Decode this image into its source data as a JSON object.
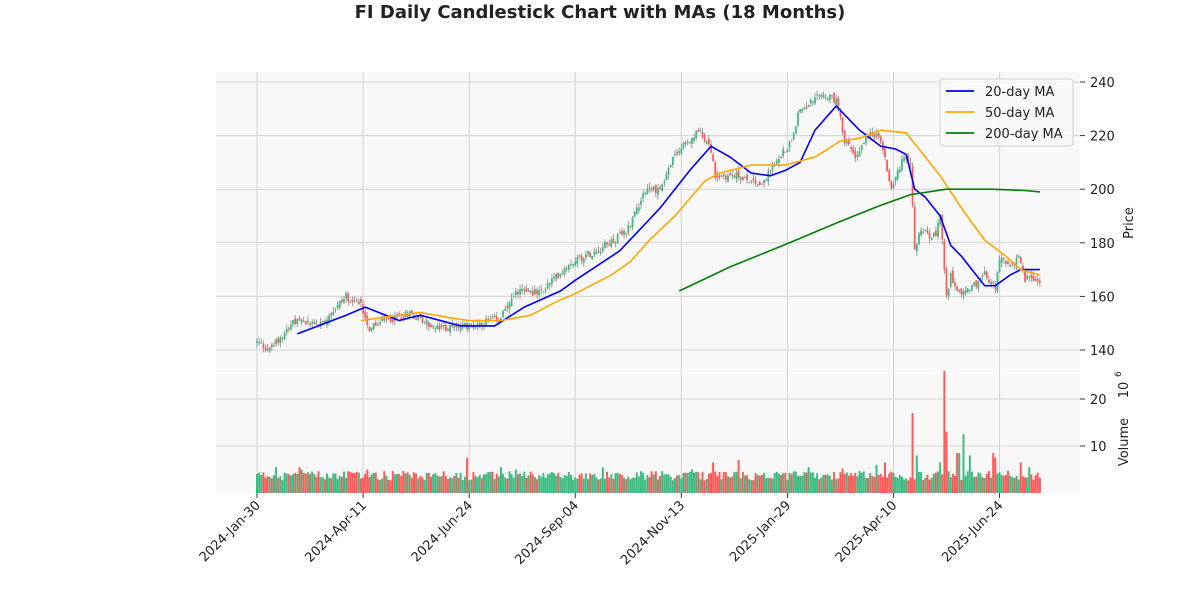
{
  "chart_data": {
    "type": "candlestick",
    "title": "FI Daily Candlestick Chart with MAs (18 Months)",
    "ylabel_price": "Price",
    "ylabel_volume": "Volume",
    "volume_exponent": "10",
    "volume_exponent_power": "6",
    "price_ylim": [
      136,
      244
    ],
    "price_ticks": [
      140,
      160,
      180,
      200,
      220,
      240
    ],
    "volume_ticks": [
      10,
      20
    ],
    "volume_unit": "millions",
    "trading_days": 370,
    "x_ticks": [
      {
        "day": 0,
        "label": "2024-Jan-30"
      },
      {
        "day": 50,
        "label": "2024-Apr-11"
      },
      {
        "day": 100,
        "label": "2024-Jun-24"
      },
      {
        "day": 150,
        "label": "2024-Sep-04"
      },
      {
        "day": 200,
        "label": "2024-Nov-13"
      },
      {
        "day": 250,
        "label": "2025-Jan-29"
      },
      {
        "day": 300,
        "label": "2025-Apr-10"
      },
      {
        "day": 350,
        "label": "2025-Jun-24"
      }
    ],
    "close_anchors": [
      [
        0,
        143
      ],
      [
        4,
        141
      ],
      [
        6,
        140
      ],
      [
        16,
        150
      ],
      [
        30,
        150
      ],
      [
        42,
        160
      ],
      [
        49,
        157
      ],
      [
        53,
        148
      ],
      [
        58,
        150
      ],
      [
        72,
        154
      ],
      [
        84,
        148
      ],
      [
        100,
        149
      ],
      [
        115,
        152
      ],
      [
        124,
        163
      ],
      [
        133,
        161
      ],
      [
        148,
        173
      ],
      [
        162,
        178
      ],
      [
        174,
        184
      ],
      [
        183,
        200
      ],
      [
        190,
        200
      ],
      [
        197,
        213
      ],
      [
        209,
        222
      ],
      [
        214,
        215
      ],
      [
        216,
        205
      ],
      [
        228,
        205
      ],
      [
        238,
        202
      ],
      [
        242,
        207
      ],
      [
        251,
        217
      ],
      [
        256,
        230
      ],
      [
        266,
        235
      ],
      [
        273,
        233
      ],
      [
        277,
        218
      ],
      [
        282,
        212
      ],
      [
        289,
        222
      ],
      [
        294,
        218
      ],
      [
        299,
        200
      ],
      [
        301,
        205
      ],
      [
        306,
        213
      ],
      [
        308,
        208
      ],
      [
        310,
        178
      ],
      [
        313,
        185
      ],
      [
        320,
        182
      ],
      [
        322,
        190
      ],
      [
        325,
        160
      ],
      [
        327,
        168
      ],
      [
        332,
        160
      ],
      [
        339,
        165
      ],
      [
        343,
        168
      ],
      [
        348,
        163
      ],
      [
        350,
        175
      ],
      [
        355,
        171
      ],
      [
        359,
        175
      ],
      [
        362,
        167
      ],
      [
        369,
        166
      ]
    ],
    "volume_base": 3.5,
    "volume_spikes": [
      [
        9,
        5.5
      ],
      [
        20,
        5.5
      ],
      [
        21,
        5
      ],
      [
        52,
        5
      ],
      [
        99,
        7.5
      ],
      [
        115,
        5.5
      ],
      [
        122,
        5
      ],
      [
        163,
        5.5
      ],
      [
        205,
        5
      ],
      [
        215,
        6.5
      ],
      [
        227,
        7
      ],
      [
        245,
        4.5
      ],
      [
        260,
        5.5
      ],
      [
        276,
        5.2
      ],
      [
        292,
        6
      ],
      [
        296,
        6.5
      ],
      [
        309,
        17
      ],
      [
        311,
        8
      ],
      [
        322,
        6.5
      ],
      [
        324,
        26
      ],
      [
        325,
        13
      ],
      [
        330,
        8.5
      ],
      [
        331,
        8.5
      ],
      [
        333,
        12.5
      ],
      [
        336,
        8
      ],
      [
        347,
        8.5
      ],
      [
        348,
        7.5
      ],
      [
        360,
        6.5
      ],
      [
        364,
        5.5
      ]
    ],
    "series": [
      {
        "name": "20-day MA",
        "color": "#0000ff",
        "points": [
          [
            19,
            146
          ],
          [
            42,
            153
          ],
          [
            51,
            156
          ],
          [
            67,
            151
          ],
          [
            77,
            153
          ],
          [
            96,
            149
          ],
          [
            112,
            149
          ],
          [
            126,
            156
          ],
          [
            143,
            162
          ],
          [
            150,
            166
          ],
          [
            171,
            177
          ],
          [
            190,
            193
          ],
          [
            204,
            207
          ],
          [
            214,
            216
          ],
          [
            223,
            212
          ],
          [
            233,
            206
          ],
          [
            242,
            205
          ],
          [
            249,
            207
          ],
          [
            256,
            210
          ],
          [
            263,
            222
          ],
          [
            273,
            231
          ],
          [
            284,
            222
          ],
          [
            294,
            216
          ],
          [
            301,
            215
          ],
          [
            306,
            213
          ],
          [
            310,
            200
          ],
          [
            315,
            197
          ],
          [
            322,
            190
          ],
          [
            327,
            179
          ],
          [
            332,
            175
          ],
          [
            339,
            168
          ],
          [
            343,
            164
          ],
          [
            348,
            164
          ],
          [
            355,
            168
          ],
          [
            360,
            170
          ],
          [
            369,
            170
          ]
        ]
      },
      {
        "name": "50-day MA",
        "color": "#ffa500",
        "points": [
          [
            49,
            151
          ],
          [
            67,
            153
          ],
          [
            77,
            154
          ],
          [
            91,
            152
          ],
          [
            100,
            151
          ],
          [
            115,
            151
          ],
          [
            129,
            153
          ],
          [
            141,
            158
          ],
          [
            150,
            161
          ],
          [
            167,
            168
          ],
          [
            176,
            173
          ],
          [
            185,
            181
          ],
          [
            197,
            190
          ],
          [
            211,
            203
          ],
          [
            218,
            206
          ],
          [
            233,
            209
          ],
          [
            242,
            209
          ],
          [
            249,
            209
          ],
          [
            263,
            212
          ],
          [
            275,
            218
          ],
          [
            284,
            219
          ],
          [
            294,
            222
          ],
          [
            306,
            221
          ],
          [
            310,
            217
          ],
          [
            322,
            205
          ],
          [
            332,
            193
          ],
          [
            343,
            181
          ],
          [
            353,
            175
          ],
          [
            360,
            170
          ],
          [
            369,
            168
          ]
        ]
      },
      {
        "name": "200-day MA",
        "color": "#008000",
        "points": [
          [
            199,
            162
          ],
          [
            223,
            171
          ],
          [
            251,
            180
          ],
          [
            275,
            188
          ],
          [
            294,
            194
          ],
          [
            308,
            198
          ],
          [
            325,
            200
          ],
          [
            346,
            200
          ],
          [
            362,
            199.5
          ],
          [
            369,
            199
          ]
        ]
      }
    ],
    "up_color": "#3dbb82",
    "down_color": "#ff5a5a",
    "legend_position": "top-right"
  }
}
